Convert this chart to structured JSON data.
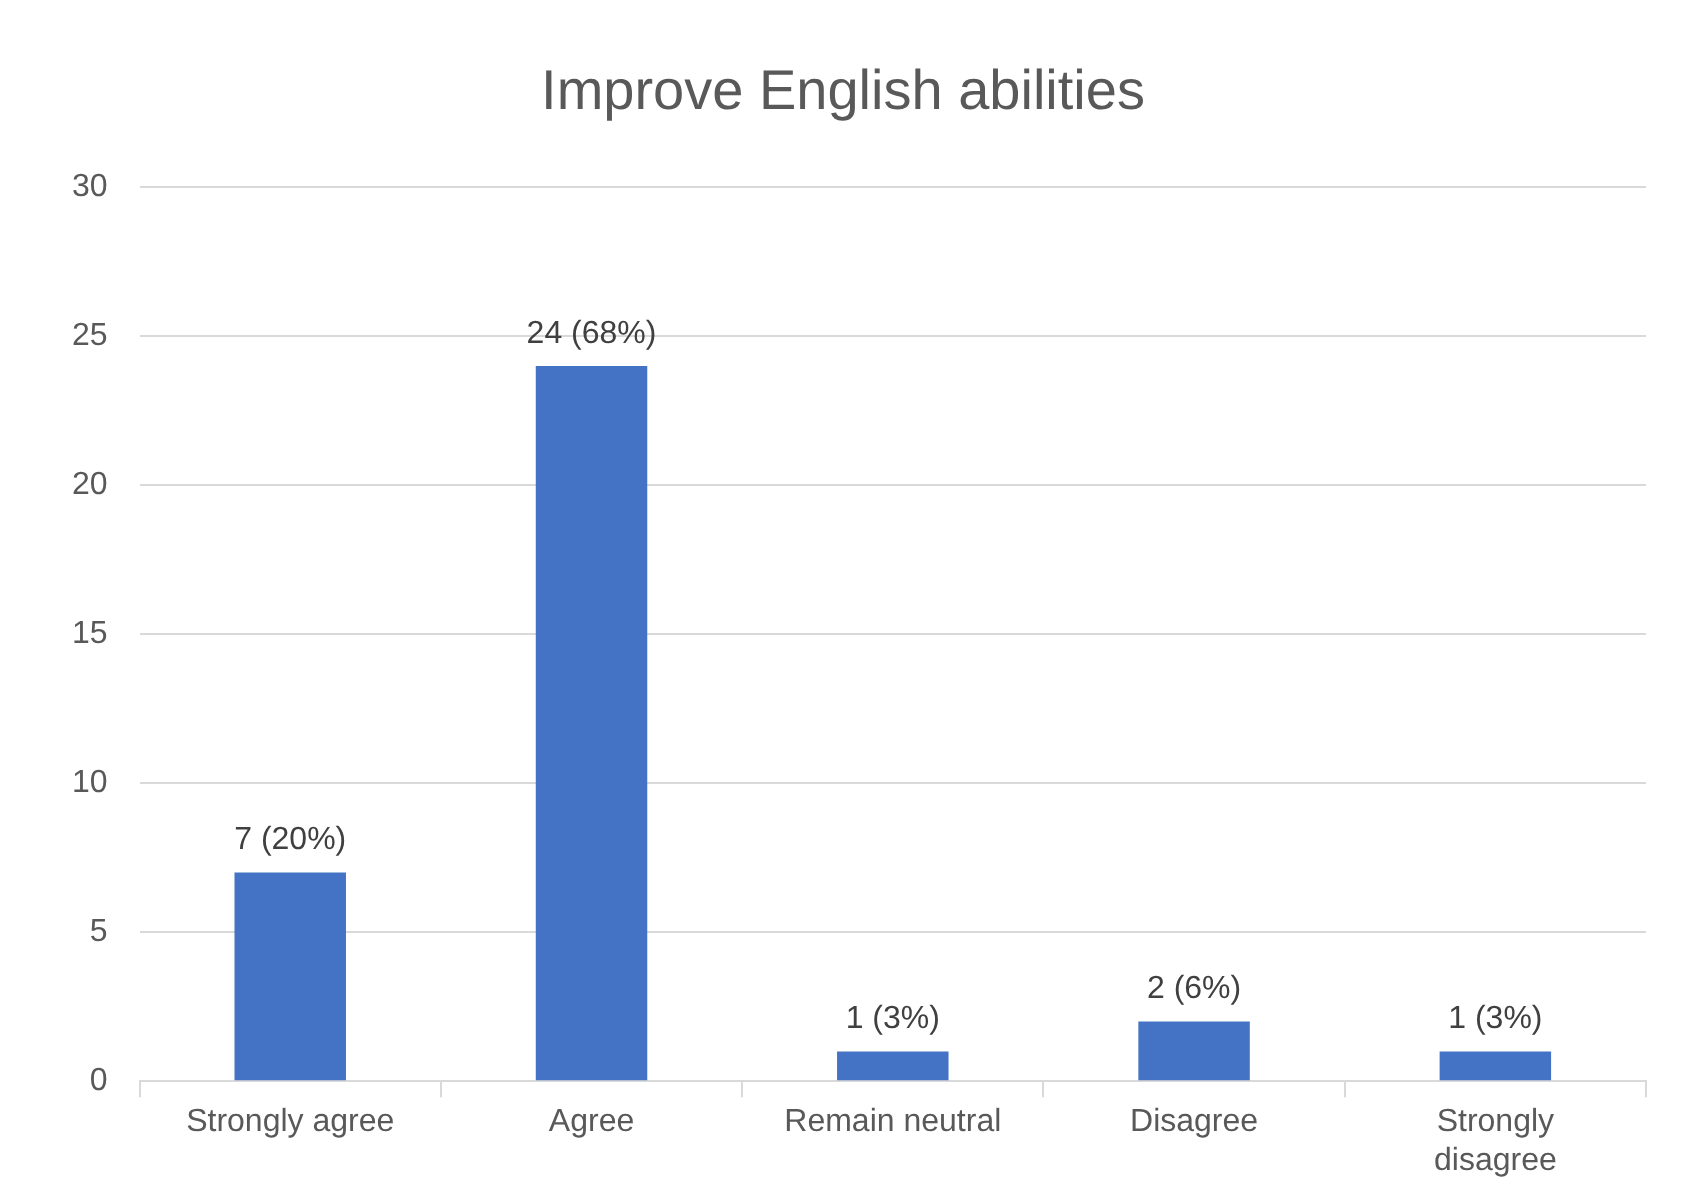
{
  "chart_data": {
    "type": "bar",
    "title": "Improve English abilities",
    "categories": [
      "Strongly agree",
      "Agree",
      "Remain neutral",
      "Disagree",
      "Strongly disagree"
    ],
    "values": [
      7,
      24,
      1,
      2,
      1
    ],
    "color": "#4472c4",
    "value_labels": [
      "7 (20%)",
      "24 (68%)",
      "1 (3%)",
      "2 (6%)",
      "1 (3%)"
    ],
    "ylim": [
      0,
      30
    ],
    "yticks": [
      0,
      5,
      10,
      15,
      20,
      25,
      30
    ],
    "grid": "y",
    "legend": false
  }
}
